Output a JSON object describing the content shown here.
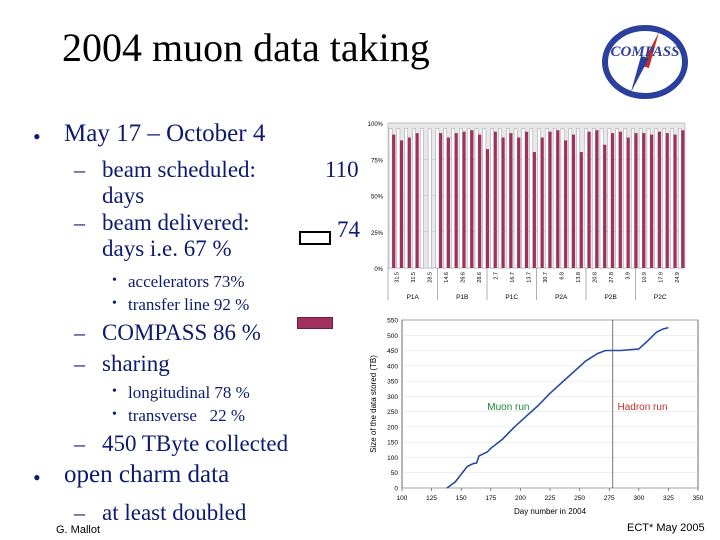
{
  "slide": {
    "title": "2004 muon data taking",
    "logo_text": "COMPASS",
    "bullets": {
      "period": "May 17 – October 4",
      "beam_scheduled_label": "beam scheduled:",
      "beam_scheduled_value": "110",
      "beam_scheduled_unit": "days",
      "beam_delivered_label": "beam delivered:",
      "beam_delivered_value": "74",
      "beam_delivered_note": "days i.e. 67 %",
      "accelerators": "accelerators 73%",
      "transfer_line": "transfer line 92 %",
      "compass": "COMPASS 86 %",
      "sharing": "sharing",
      "longitudinal": "longitudinal 78 %",
      "transverse": "transverse   22 %",
      "collected": "450 TByte collected",
      "open_charm": "open charm data",
      "doubled": "at least doubled"
    },
    "footer_left": "G. Mallot",
    "footer_right": "ECT* May 2005",
    "colors": {
      "text": "#0d1a6e",
      "bar": "#a0305e",
      "curve": "#2a4a9e",
      "muon": "#1a8a3a",
      "hadron": "#c0302a"
    }
  },
  "chart_data": [
    {
      "type": "bar",
      "yticks": [
        "100%",
        "75%",
        "50%",
        "25%",
        "0%"
      ],
      "period_labels": [
        "P1A",
        "P1B",
        "P1C",
        "P2A",
        "P2B",
        "P2C"
      ],
      "week_labels": [
        "31.5",
        "31.5",
        "28.5",
        "14.6",
        "26.6",
        "28.6",
        "2.7",
        "16.7",
        "13.7",
        "30.7",
        "6.8",
        "13.8",
        "20.8",
        "27.8",
        "3.9",
        "10.9",
        "17.9",
        "24.9"
      ],
      "scheduled": [
        1,
        1,
        1,
        1,
        1,
        1,
        1,
        1,
        1,
        1,
        1,
        1,
        1,
        1,
        1,
        1,
        1,
        1,
        1,
        1,
        1,
        1,
        1,
        1,
        1,
        1,
        1,
        1,
        1,
        1,
        1,
        1,
        1,
        1,
        1,
        1,
        1,
        1
      ],
      "delivered": [
        0.92,
        0.88,
        0.9,
        0.93,
        0.0,
        0.0,
        0.93,
        0.9,
        0.93,
        0.94,
        0.95,
        0.92,
        0.82,
        0.94,
        0.9,
        0.93,
        0.9,
        0.94,
        0.8,
        0.9,
        0.94,
        0.95,
        0.88,
        0.92,
        0.8,
        0.94,
        0.95,
        0.85,
        0.93,
        0.94,
        0.9,
        0.93,
        0.93,
        0.92,
        0.94,
        0.93,
        0.92,
        0.95
      ]
    },
    {
      "type": "line",
      "xlabel": "Day number in 2004",
      "ylabel": "Size of the data stored (TB)",
      "x_ticks": [
        100,
        125,
        150,
        175,
        200,
        225,
        250,
        275,
        300,
        325,
        350
      ],
      "y_ticks": [
        0,
        50,
        100,
        150,
        200,
        250,
        300,
        350,
        400,
        450,
        500,
        550
      ],
      "xlim": [
        100,
        350
      ],
      "ylim": [
        0,
        550
      ],
      "annotations": {
        "muon": "Muon run",
        "hadron": "Hadron run"
      },
      "points": [
        [
          138,
          0
        ],
        [
          145,
          20
        ],
        [
          150,
          45
        ],
        [
          155,
          70
        ],
        [
          160,
          80
        ],
        [
          163,
          82
        ],
        [
          165,
          105
        ],
        [
          172,
          118
        ],
        [
          175,
          130
        ],
        [
          185,
          160
        ],
        [
          195,
          200
        ],
        [
          205,
          235
        ],
        [
          215,
          270
        ],
        [
          225,
          310
        ],
        [
          235,
          345
        ],
        [
          245,
          380
        ],
        [
          255,
          415
        ],
        [
          265,
          440
        ],
        [
          272,
          450
        ],
        [
          285,
          450
        ],
        [
          300,
          455
        ],
        [
          307,
          480
        ],
        [
          315,
          510
        ],
        [
          320,
          520
        ],
        [
          325,
          525
        ]
      ]
    }
  ]
}
